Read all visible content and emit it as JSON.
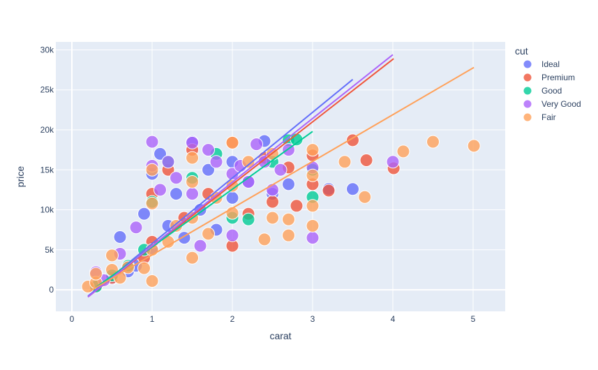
{
  "chart_data": {
    "type": "scatter",
    "title": "",
    "xlabel": "carat",
    "ylabel": "price",
    "xlim": [
      -0.2,
      5.4
    ],
    "ylim": [
      -2700,
      31000
    ],
    "x_ticks": [
      0,
      1,
      2,
      3,
      4,
      5
    ],
    "x_tick_labels": [
      "0",
      "1",
      "2",
      "3",
      "4",
      "5"
    ],
    "y_ticks": [
      0,
      5000,
      10000,
      15000,
      20000,
      25000,
      30000
    ],
    "y_tick_labels": [
      "0",
      "5k",
      "10k",
      "15k",
      "20k",
      "25k",
      "30k"
    ],
    "grid": true,
    "legend": {
      "title": "cut",
      "placement": "right"
    },
    "series": [
      {
        "name": "Ideal",
        "color": "#636efa",
        "trendline": [
          [
            0.2,
            -800
          ],
          [
            3.5,
            26300
          ]
        ],
        "points": [
          [
            0.3,
            600
          ],
          [
            0.5,
            1400
          ],
          [
            0.6,
            6600
          ],
          [
            0.7,
            2300
          ],
          [
            0.8,
            3000
          ],
          [
            0.9,
            9500
          ],
          [
            1.0,
            5200
          ],
          [
            1.0,
            14500
          ],
          [
            1.1,
            17000
          ],
          [
            1.2,
            8000
          ],
          [
            1.3,
            12000
          ],
          [
            1.4,
            6500
          ],
          [
            1.5,
            18500
          ],
          [
            1.6,
            10000
          ],
          [
            1.7,
            15000
          ],
          [
            1.8,
            7500
          ],
          [
            2.0,
            16000
          ],
          [
            2.0,
            11500
          ],
          [
            2.2,
            13500
          ],
          [
            2.4,
            18600
          ],
          [
            2.5,
            12000
          ],
          [
            2.7,
            13200
          ],
          [
            3.2,
            12600
          ],
          [
            3.5,
            12600
          ]
        ]
      },
      {
        "name": "Premium",
        "color": "#ef553b",
        "trendline": [
          [
            0.2,
            -900
          ],
          [
            4.01,
            28900
          ]
        ],
        "points": [
          [
            0.3,
            500
          ],
          [
            0.5,
            1500
          ],
          [
            0.7,
            2800
          ],
          [
            0.9,
            4000
          ],
          [
            1.0,
            6000
          ],
          [
            1.0,
            12000
          ],
          [
            1.2,
            15000
          ],
          [
            1.4,
            9000
          ],
          [
            1.5,
            17500
          ],
          [
            1.7,
            12000
          ],
          [
            2.0,
            18400
          ],
          [
            2.0,
            5500
          ],
          [
            2.2,
            9500
          ],
          [
            2.4,
            16500
          ],
          [
            2.5,
            11000
          ],
          [
            2.7,
            15300
          ],
          [
            2.8,
            10500
          ],
          [
            3.0,
            13200
          ],
          [
            3.0,
            16800
          ],
          [
            3.2,
            12400
          ],
          [
            3.5,
            18700
          ],
          [
            3.67,
            16200
          ],
          [
            4.01,
            15200
          ]
        ]
      },
      {
        "name": "Good",
        "color": "#00cc96",
        "trendline": [
          [
            0.3,
            300
          ],
          [
            3.0,
            19800
          ]
        ],
        "points": [
          [
            0.3,
            400
          ],
          [
            0.5,
            1800
          ],
          [
            0.7,
            3000
          ],
          [
            0.9,
            5000
          ],
          [
            1.0,
            11000
          ],
          [
            1.2,
            16000
          ],
          [
            1.5,
            14000
          ],
          [
            1.8,
            17000
          ],
          [
            2.0,
            9000
          ],
          [
            2.2,
            8800
          ],
          [
            2.5,
            16000
          ],
          [
            2.7,
            18700
          ],
          [
            2.8,
            18800
          ],
          [
            3.0,
            11600
          ],
          [
            3.0,
            15000
          ]
        ]
      },
      {
        "name": "Very Good",
        "color": "#ab63fa",
        "trendline": [
          [
            0.2,
            -900
          ],
          [
            4.0,
            29400
          ]
        ],
        "points": [
          [
            0.3,
            2200
          ],
          [
            0.4,
            1200
          ],
          [
            0.6,
            4500
          ],
          [
            0.8,
            7800
          ],
          [
            1.0,
            15500
          ],
          [
            1.0,
            18500
          ],
          [
            1.1,
            12500
          ],
          [
            1.2,
            16000
          ],
          [
            1.3,
            14000
          ],
          [
            1.5,
            18400
          ],
          [
            1.5,
            12000
          ],
          [
            1.6,
            5500
          ],
          [
            1.7,
            17500
          ],
          [
            1.8,
            16000
          ],
          [
            2.0,
            14500
          ],
          [
            2.0,
            6800
          ],
          [
            2.1,
            15500
          ],
          [
            2.2,
            13500
          ],
          [
            2.3,
            18200
          ],
          [
            2.4,
            16000
          ],
          [
            2.5,
            12500
          ],
          [
            2.6,
            15000
          ],
          [
            2.7,
            17500
          ],
          [
            3.0,
            6500
          ],
          [
            3.0,
            15300
          ],
          [
            4.0,
            16000
          ]
        ]
      },
      {
        "name": "Fair",
        "color": "#ffa15a",
        "trendline": [
          [
            0.22,
            -200
          ],
          [
            5.01,
            27800
          ]
        ],
        "points": [
          [
            0.2,
            400
          ],
          [
            0.3,
            900
          ],
          [
            0.3,
            2000
          ],
          [
            0.5,
            2500
          ],
          [
            0.5,
            4300
          ],
          [
            0.6,
            1500
          ],
          [
            0.7,
            2800
          ],
          [
            0.9,
            2700
          ],
          [
            1.0,
            1100
          ],
          [
            1.0,
            5000
          ],
          [
            1.0,
            10800
          ],
          [
            1.0,
            15000
          ],
          [
            1.2,
            6000
          ],
          [
            1.3,
            8000
          ],
          [
            1.5,
            4000
          ],
          [
            1.5,
            9000
          ],
          [
            1.5,
            13500
          ],
          [
            1.5,
            16500
          ],
          [
            1.7,
            7000
          ],
          [
            1.8,
            11500
          ],
          [
            2.0,
            9600
          ],
          [
            2.0,
            13000
          ],
          [
            2.0,
            18400
          ],
          [
            2.2,
            16000
          ],
          [
            2.4,
            6300
          ],
          [
            2.5,
            9000
          ],
          [
            2.5,
            17000
          ],
          [
            2.7,
            6800
          ],
          [
            2.7,
            8800
          ],
          [
            3.0,
            8000
          ],
          [
            3.0,
            10500
          ],
          [
            3.0,
            14300
          ],
          [
            3.0,
            17500
          ],
          [
            3.4,
            16000
          ],
          [
            3.65,
            11600
          ],
          [
            4.13,
            17300
          ],
          [
            4.5,
            18500
          ],
          [
            5.01,
            18000
          ]
        ]
      }
    ]
  }
}
